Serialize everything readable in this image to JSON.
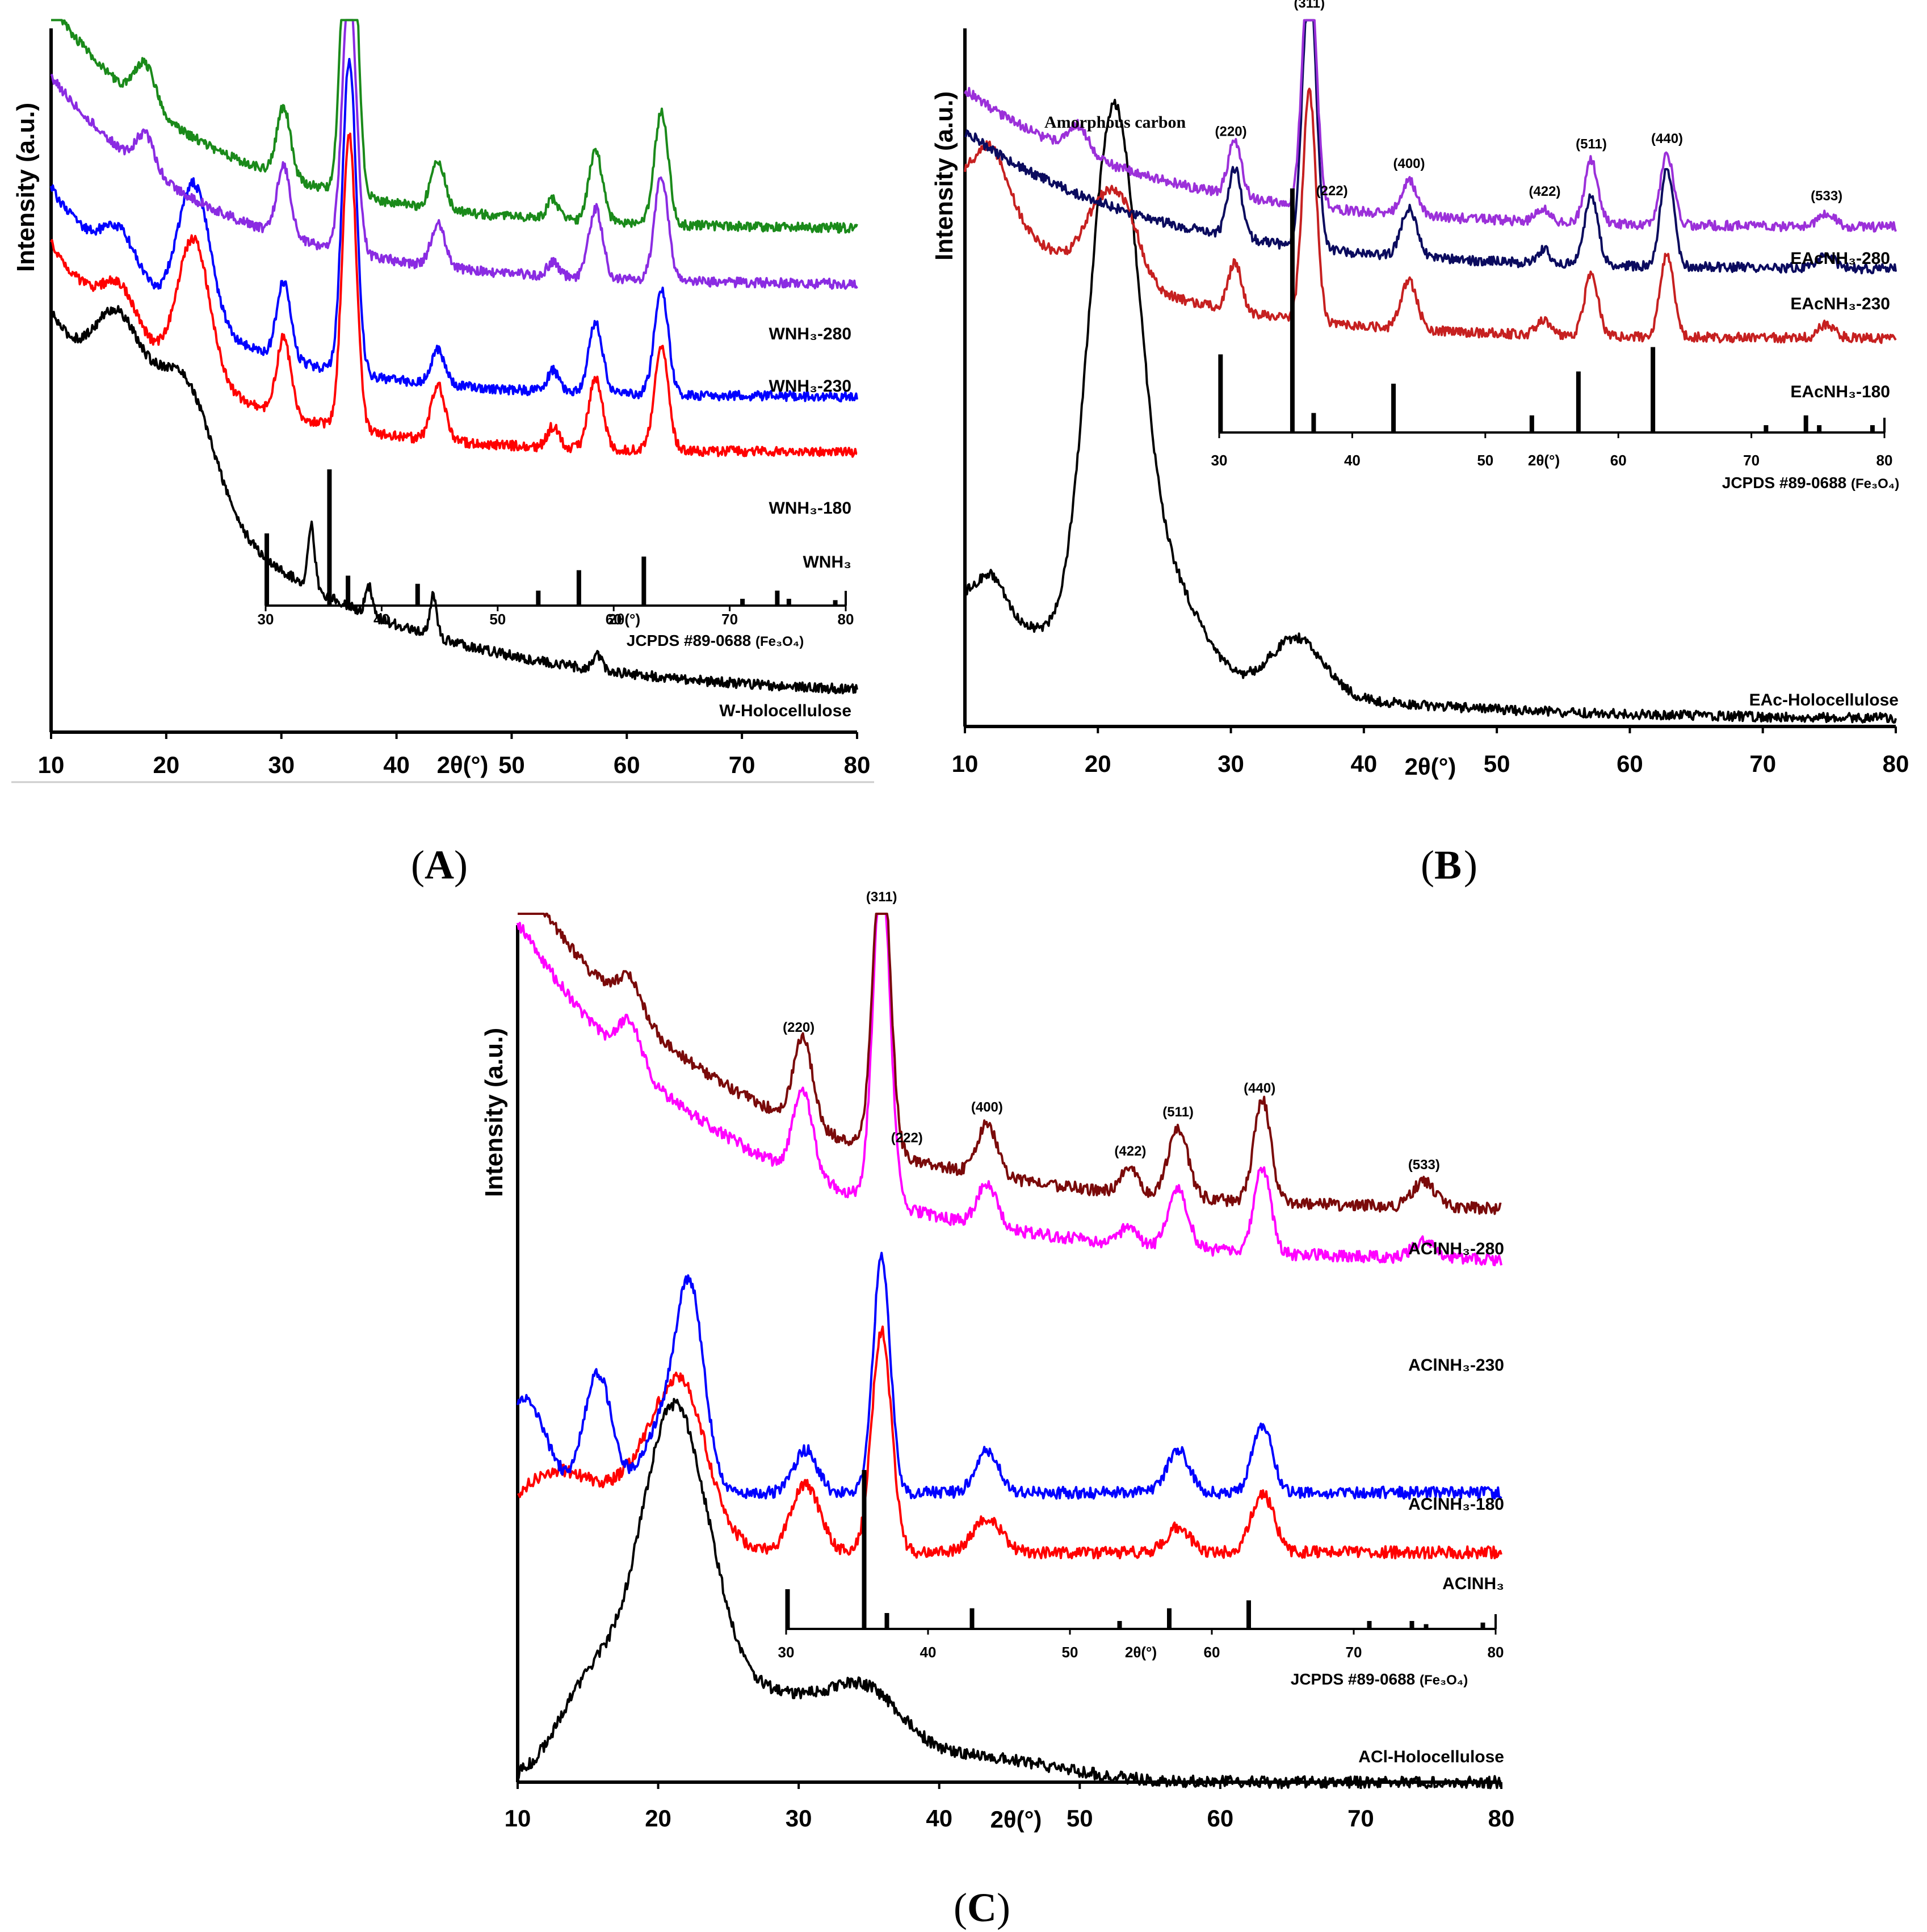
{
  "chart_data": [
    {
      "panel": "A",
      "type": "line",
      "xlabel": "2θ(°)",
      "ylabel": "Intensity (a.u.)",
      "xlim": [
        10,
        80
      ],
      "xticks": [
        10,
        20,
        30,
        40,
        50,
        60,
        70,
        80
      ],
      "series": [
        {
          "name": "W-Holocellulose",
          "label": "W-Holocellulose",
          "color": "#000000",
          "offset": 0.0,
          "baseline": 0.05,
          "slope": 0.55,
          "decay": 18,
          "bumps": [
            [
              15.8,
              0.14,
              2.0
            ],
            [
              21.5,
              0.17,
              2.6
            ],
            [
              32.6,
              0.09,
              0.3
            ],
            [
              37.6,
              0.04,
              0.3
            ],
            [
              43.2,
              0.06,
              0.3
            ],
            [
              57.5,
              0.02,
              0.4
            ]
          ]
        },
        {
          "name": "W_NH3",
          "label": "WNH₃",
          "color": "#ff0000",
          "offset": 0.34,
          "baseline": 0.06,
          "slope": 0.3,
          "decay": 12,
          "bumps": [
            [
              16.0,
              0.06,
              1.5
            ],
            [
              22.4,
              0.2,
              1.4
            ],
            [
              30.2,
              0.11,
              0.6
            ],
            [
              35.9,
              0.42,
              0.6
            ],
            [
              43.6,
              0.08,
              0.6
            ],
            [
              53.6,
              0.03,
              0.5
            ],
            [
              57.3,
              0.1,
              0.6
            ],
            [
              63.0,
              0.15,
              0.6
            ]
          ]
        },
        {
          "name": "W_NH3-180",
          "label": "WNH₃-180",
          "color": "#0000ff",
          "offset": 0.42,
          "baseline": 0.06,
          "slope": 0.3,
          "decay": 12,
          "bumps": [
            [
              16.0,
              0.06,
              1.5
            ],
            [
              22.4,
              0.2,
              1.4
            ],
            [
              30.2,
              0.11,
              0.6
            ],
            [
              35.9,
              0.45,
              0.6
            ],
            [
              43.6,
              0.05,
              0.6
            ],
            [
              53.6,
              0.03,
              0.5
            ],
            [
              57.3,
              0.1,
              0.6
            ],
            [
              63.0,
              0.15,
              0.6
            ]
          ]
        },
        {
          "name": "W_NH3-230",
          "label": "WNH₃-230",
          "color": "#8a2be2",
          "offset": 0.58,
          "baseline": 0.06,
          "slope": 0.3,
          "decay": 14,
          "bumps": [
            [
              18.2,
              0.05,
              0.8
            ],
            [
              30.2,
              0.1,
              0.6
            ],
            [
              35.9,
              0.38,
              0.6
            ],
            [
              43.6,
              0.06,
              0.6
            ],
            [
              53.6,
              0.02,
              0.5
            ],
            [
              57.3,
              0.1,
              0.6
            ],
            [
              63.0,
              0.15,
              0.6
            ]
          ]
        },
        {
          "name": "W_NH3-280",
          "label": "WNH₃-280",
          "color": "#1a8a1a",
          "offset": 0.66,
          "baseline": 0.06,
          "slope": 0.32,
          "decay": 14,
          "bumps": [
            [
              18.2,
              0.06,
              0.9
            ],
            [
              30.2,
              0.1,
              0.6
            ],
            [
              35.9,
              0.55,
              0.6
            ],
            [
              43.6,
              0.07,
              0.6
            ],
            [
              53.6,
              0.03,
              0.5
            ],
            [
              57.3,
              0.1,
              0.6
            ],
            [
              63.0,
              0.16,
              0.6
            ]
          ]
        }
      ],
      "reference": {
        "label": "JCPDS #89-0688",
        "formula": "(Fe₃O₄)",
        "xlabel": "2θ(°)",
        "xlim": [
          30,
          80
        ],
        "xticks": [
          30,
          40,
          50,
          60,
          70,
          80
        ],
        "peaks": [
          [
            30.1,
            0.53
          ],
          [
            35.5,
            1.0
          ],
          [
            37.1,
            0.22
          ],
          [
            43.1,
            0.16
          ],
          [
            53.5,
            0.11
          ],
          [
            57.0,
            0.26
          ],
          [
            62.6,
            0.36
          ],
          [
            71.1,
            0.05
          ],
          [
            74.1,
            0.11
          ],
          [
            75.1,
            0.05
          ],
          [
            79.1,
            0.04
          ]
        ]
      }
    },
    {
      "panel": "B",
      "type": "line",
      "xlabel": "2θ(°)",
      "ylabel": "Intensity (a.u.)",
      "xlim": [
        10,
        80
      ],
      "xticks": [
        10,
        20,
        30,
        40,
        50,
        60,
        70,
        80
      ],
      "annotation": "Amorphous carbon",
      "series": [
        {
          "name": "EAc-Holocellulose",
          "label": "EAc-Holocellulose",
          "color": "#000000",
          "offset": 0.0,
          "baseline": 0.01,
          "slope": 0.18,
          "decay": 16,
          "bumps": [
            [
              12.0,
              0.05,
              1.0
            ],
            [
              20.3,
              0.44,
              1.6
            ],
            [
              22.0,
              0.43,
              1.6
            ],
            [
              25.0,
              0.14,
              2.5
            ],
            [
              35.0,
              0.08,
              2.0
            ]
          ]
        },
        {
          "name": "EAc_NH3-180",
          "label": "EAcNH₃-180",
          "color": "#c62020",
          "offset": 0.52,
          "baseline": 0.04,
          "slope": 0.22,
          "decay": 12,
          "bumps": [
            [
              12.0,
              0.09,
              1.3
            ],
            [
              20.0,
              0.08,
              1.2
            ],
            [
              22.0,
              0.1,
              1.2
            ],
            [
              30.3,
              0.07,
              0.5
            ],
            [
              35.9,
              0.33,
              0.5
            ],
            [
              43.4,
              0.07,
              0.6
            ],
            [
              53.5,
              0.02,
              0.5
            ],
            [
              57.1,
              0.09,
              0.5
            ],
            [
              62.8,
              0.12,
              0.5
            ],
            [
              74.8,
              0.02,
              0.6
            ]
          ]
        },
        {
          "name": "EAc_NH3-230",
          "label": "EAcNH₃-230",
          "color": "#0b0b5e",
          "offset": 0.62,
          "baseline": 0.04,
          "slope": 0.2,
          "decay": 14,
          "bumps": [
            [
              30.3,
              0.1,
              0.5
            ],
            [
              35.9,
              0.4,
              0.5
            ],
            [
              43.4,
              0.07,
              0.6
            ],
            [
              53.5,
              0.02,
              0.5
            ],
            [
              57.1,
              0.1,
              0.5
            ],
            [
              62.8,
              0.14,
              0.5
            ],
            [
              74.8,
              0.02,
              0.6
            ]
          ]
        },
        {
          "name": "EAc_NH3-280",
          "label": "EAcNH₃-280",
          "color": "#9b30d9",
          "offset": 0.68,
          "baseline": 0.04,
          "slope": 0.2,
          "decay": 14,
          "bumps": [
            [
              18.5,
              0.04,
              0.8
            ],
            [
              30.3,
              0.08,
              0.5
            ],
            [
              35.9,
              0.38,
              0.5
            ],
            [
              43.4,
              0.05,
              0.6
            ],
            [
              53.5,
              0.02,
              0.5
            ],
            [
              57.1,
              0.09,
              0.5
            ],
            [
              62.8,
              0.1,
              0.5
            ],
            [
              74.8,
              0.02,
              0.6
            ]
          ]
        }
      ],
      "hkl": [
        {
          "label": "(311)",
          "x": 35.9
        },
        {
          "label": "(220)",
          "x": 30.0
        },
        {
          "label": "(222)",
          "x": 37.6
        },
        {
          "label": "(400)",
          "x": 43.4
        },
        {
          "label": "(422)",
          "x": 53.6
        },
        {
          "label": "(511)",
          "x": 57.1
        },
        {
          "label": "(440)",
          "x": 62.8
        },
        {
          "label": "(533)",
          "x": 74.8
        }
      ],
      "reference": {
        "label": "JCPDS #89-0688",
        "formula": "(Fe₃O₄)",
        "xlabel": "2θ(°)",
        "xlim": [
          30,
          80
        ],
        "xticks": [
          30,
          40,
          50,
          60,
          70,
          80
        ],
        "peaks": [
          [
            30.1,
            0.32
          ],
          [
            35.5,
            1.0
          ],
          [
            37.1,
            0.08
          ],
          [
            43.1,
            0.2
          ],
          [
            53.5,
            0.07
          ],
          [
            57.0,
            0.25
          ],
          [
            62.6,
            0.35
          ],
          [
            71.1,
            0.03
          ],
          [
            74.1,
            0.07
          ],
          [
            75.1,
            0.03
          ],
          [
            79.1,
            0.03
          ]
        ]
      }
    },
    {
      "panel": "C",
      "type": "line",
      "xlabel": "2θ(°)",
      "ylabel": "Intensity (a.u.)",
      "xlim": [
        10,
        80
      ],
      "xticks": [
        10,
        20,
        30,
        40,
        50,
        60,
        70,
        80
      ],
      "series": [
        {
          "name": "ACl-Holocellulose",
          "label": "ACl-Holocellulose",
          "color": "#000000",
          "offset": 0.0,
          "baseline": 0.0,
          "slope": 0.0,
          "decay": 20,
          "bumps": [
            [
              15.5,
              0.12,
              2.5
            ],
            [
              20.8,
              0.36,
              2.2
            ],
            [
              23.5,
              0.08,
              2.0
            ],
            [
              28.0,
              0.1,
              5.0
            ],
            [
              35.0,
              0.06,
              2.5
            ],
            [
              42.0,
              0.03,
              6.0
            ]
          ]
        },
        {
          "name": "ACl_NH3",
          "label": "AClNH₃",
          "color": "#ff0000",
          "offset": 0.25,
          "baseline": 0.02,
          "slope": 0.0,
          "decay": 20,
          "bumps": [
            [
              10.5,
              0.05,
              2.5
            ],
            [
              14.0,
              0.07,
              2.5
            ],
            [
              20.5,
              0.14,
              2.5
            ],
            [
              22.0,
              0.08,
              1.5
            ],
            [
              30.5,
              0.08,
              1.0
            ],
            [
              35.9,
              0.26,
              0.7
            ],
            [
              43.4,
              0.04,
              1.0
            ],
            [
              57.0,
              0.03,
              0.8
            ],
            [
              63.0,
              0.07,
              0.8
            ]
          ]
        },
        {
          "name": "ACl_NH3-180",
          "label": "AClNH₃-180",
          "color": "#0000ff",
          "offset": 0.32,
          "baseline": 0.02,
          "slope": 0.0,
          "decay": 20,
          "bumps": [
            [
              10.5,
              0.11,
              1.5
            ],
            [
              15.7,
              0.14,
              1.0
            ],
            [
              20.5,
              0.08,
              1.5
            ],
            [
              22.3,
              0.21,
              1.0
            ],
            [
              30.5,
              0.05,
              0.8
            ],
            [
              35.9,
              0.28,
              0.6
            ],
            [
              43.4,
              0.05,
              0.8
            ],
            [
              57.0,
              0.05,
              0.8
            ],
            [
              63.0,
              0.08,
              0.7
            ]
          ]
        },
        {
          "name": "ACl_NH3-230",
          "label": "AClNH₃-230",
          "color": "#ff00ff",
          "offset": 0.56,
          "baseline": 0.05,
          "slope": 0.4,
          "decay": 15,
          "bumps": [
            [
              18.0,
              0.05,
              0.8
            ],
            [
              30.3,
              0.1,
              0.7
            ],
            [
              35.9,
              0.4,
              0.6
            ],
            [
              43.4,
              0.05,
              0.7
            ],
            [
              53.5,
              0.02,
              0.6
            ],
            [
              57.0,
              0.07,
              0.7
            ],
            [
              63.0,
              0.1,
              0.6
            ],
            [
              74.5,
              0.02,
              0.8
            ]
          ]
        },
        {
          "name": "ACl_NH3-280",
          "label": "AClNH₃-280",
          "color": "#7a0a0a",
          "offset": 0.62,
          "baseline": 0.05,
          "slope": 0.4,
          "decay": 15,
          "bumps": [
            [
              18.0,
              0.04,
              0.9
            ],
            [
              30.3,
              0.1,
              0.7
            ],
            [
              35.9,
              0.36,
              0.6
            ],
            [
              43.4,
              0.06,
              0.7
            ],
            [
              53.5,
              0.03,
              0.6
            ],
            [
              57.0,
              0.08,
              0.7
            ],
            [
              63.0,
              0.12,
              0.6
            ],
            [
              74.5,
              0.03,
              0.8
            ]
          ]
        }
      ],
      "hkl": [
        {
          "label": "(311)",
          "x": 35.9
        },
        {
          "label": "(220)",
          "x": 30.0
        },
        {
          "label": "(222)",
          "x": 37.7
        },
        {
          "label": "(400)",
          "x": 43.4
        },
        {
          "label": "(422)",
          "x": 53.6
        },
        {
          "label": "(511)",
          "x": 57.0
        },
        {
          "label": "(440)",
          "x": 62.8
        },
        {
          "label": "(533)",
          "x": 74.5
        }
      ],
      "reference": {
        "label": "JCPDS #89-0688",
        "formula": "(Fe₃O₄)",
        "xlabel": "2θ(°)",
        "xlim": [
          30,
          80
        ],
        "xticks": [
          30,
          40,
          50,
          60,
          70,
          80
        ],
        "peaks": [
          [
            30.1,
            0.25
          ],
          [
            35.5,
            1.0
          ],
          [
            37.1,
            0.1
          ],
          [
            43.1,
            0.13
          ],
          [
            53.5,
            0.05
          ],
          [
            57.0,
            0.13
          ],
          [
            62.6,
            0.18
          ],
          [
            71.1,
            0.05
          ],
          [
            74.1,
            0.05
          ],
          [
            75.1,
            0.03
          ],
          [
            79.1,
            0.04
          ]
        ]
      }
    }
  ],
  "panel_letters": {
    "A": "A",
    "B": "B",
    "C": "C"
  }
}
